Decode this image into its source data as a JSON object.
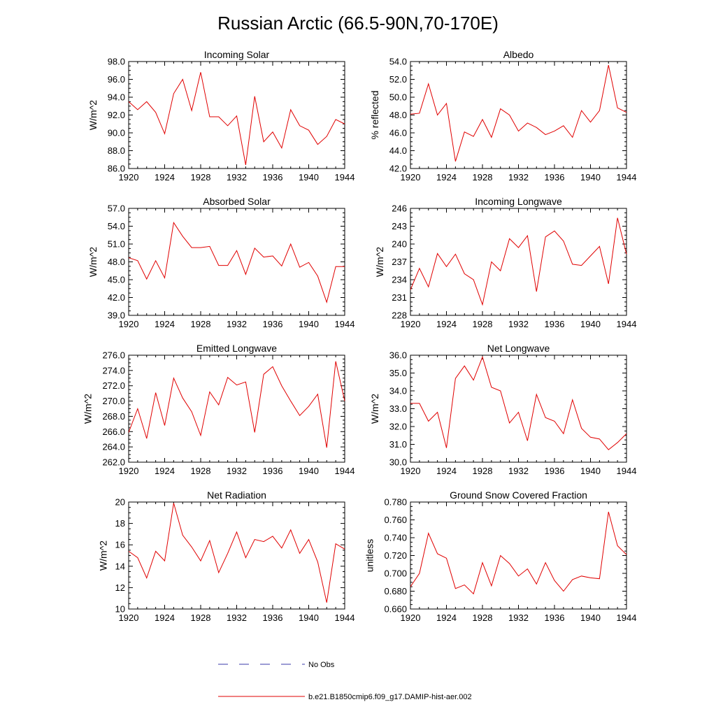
{
  "figure": {
    "title": "Russian Arctic (66.5-90N,70-170E)"
  },
  "legend": {
    "obs_label": "No Obs",
    "obs_color": "#3a3aa8",
    "model_label": "b.e21.B1850cmip6.f09_g17.DAMIP-hist-aer.002",
    "model_color": "#e00000"
  },
  "chart_data": [
    {
      "type": "line",
      "title": "Incoming Solar",
      "ylabel": "W/m^2",
      "x": [
        1920,
        1921,
        1922,
        1923,
        1924,
        1925,
        1926,
        1927,
        1928,
        1929,
        1930,
        1931,
        1932,
        1933,
        1934,
        1935,
        1936,
        1937,
        1938,
        1939,
        1940,
        1941,
        1942,
        1943,
        1944
      ],
      "values": [
        93.5,
        92.6,
        93.5,
        92.3,
        89.9,
        94.4,
        96.0,
        92.5,
        96.8,
        91.8,
        91.8,
        90.8,
        91.9,
        86.4,
        94.1,
        89.0,
        90.1,
        88.3,
        92.6,
        90.8,
        90.3,
        88.7,
        89.6,
        91.5,
        91.0
      ],
      "xlim": [
        1920,
        1944
      ],
      "ylim": [
        86.0,
        98.0
      ],
      "xticks": [
        1920,
        1924,
        1928,
        1932,
        1936,
        1940,
        1944
      ],
      "yticks": [
        "86.0",
        "88.0",
        "90.0",
        "92.0",
        "94.0",
        "96.0",
        "98.0"
      ]
    },
    {
      "type": "line",
      "title": "Albedo",
      "ylabel": "% reflected",
      "x": [
        1920,
        1921,
        1922,
        1923,
        1924,
        1925,
        1926,
        1927,
        1928,
        1929,
        1930,
        1931,
        1932,
        1933,
        1934,
        1935,
        1936,
        1937,
        1938,
        1939,
        1940,
        1941,
        1942,
        1943,
        1944
      ],
      "values": [
        48.1,
        48.2,
        51.5,
        48.0,
        49.3,
        42.8,
        46.1,
        45.6,
        47.5,
        45.5,
        48.7,
        48.0,
        46.2,
        47.1,
        46.6,
        45.8,
        46.2,
        46.8,
        45.5,
        48.5,
        47.2,
        48.5,
        53.6,
        48.8,
        48.3
      ],
      "xlim": [
        1920,
        1944
      ],
      "ylim": [
        42.0,
        54.0
      ],
      "xticks": [
        1920,
        1924,
        1928,
        1932,
        1936,
        1940,
        1944
      ],
      "yticks": [
        "42.0",
        "44.0",
        "46.0",
        "48.0",
        "50.0",
        "52.0",
        "54.0"
      ]
    },
    {
      "type": "line",
      "title": "Absorbed Solar",
      "ylabel": "W/m^2",
      "x": [
        1920,
        1921,
        1922,
        1923,
        1924,
        1925,
        1926,
        1927,
        1928,
        1929,
        1930,
        1931,
        1932,
        1933,
        1934,
        1935,
        1936,
        1937,
        1938,
        1939,
        1940,
        1941,
        1942,
        1943,
        1944
      ],
      "values": [
        48.7,
        48.2,
        45.1,
        48.2,
        45.3,
        54.6,
        52.3,
        50.4,
        50.4,
        50.6,
        47.4,
        47.4,
        49.9,
        45.9,
        50.3,
        48.8,
        49.0,
        47.3,
        51.0,
        47.1,
        47.9,
        45.6,
        41.2,
        47.2,
        47.2
      ],
      "xlim": [
        1920,
        1944
      ],
      "ylim": [
        39.0,
        57.0
      ],
      "xticks": [
        1920,
        1924,
        1928,
        1932,
        1936,
        1940,
        1944
      ],
      "yticks": [
        "39.0",
        "42.0",
        "45.0",
        "48.0",
        "51.0",
        "54.0",
        "57.0"
      ]
    },
    {
      "type": "line",
      "title": "Incoming Longwave",
      "ylabel": "W/m^2",
      "x": [
        1920,
        1921,
        1922,
        1923,
        1924,
        1925,
        1926,
        1927,
        1928,
        1929,
        1930,
        1931,
        1932,
        1933,
        1934,
        1935,
        1936,
        1937,
        1938,
        1939,
        1940,
        1941,
        1942,
        1943,
        1944
      ],
      "values": [
        232.3,
        235.9,
        232.8,
        238.4,
        236.2,
        238.3,
        235.0,
        234.0,
        229.8,
        237.0,
        235.5,
        240.9,
        239.4,
        241.4,
        232.0,
        241.2,
        242.2,
        240.5,
        236.6,
        236.4,
        238.0,
        239.6,
        233.3,
        244.4,
        238.3
      ],
      "xlim": [
        1920,
        1944
      ],
      "ylim": [
        228,
        246
      ],
      "xticks": [
        1920,
        1924,
        1928,
        1932,
        1936,
        1940,
        1944
      ],
      "yticks": [
        "228",
        "231",
        "234",
        "237",
        "240",
        "243",
        "246"
      ]
    },
    {
      "type": "line",
      "title": "Emitted Longwave",
      "ylabel": "W/m^2",
      "x": [
        1920,
        1921,
        1922,
        1923,
        1924,
        1925,
        1926,
        1927,
        1928,
        1929,
        1930,
        1931,
        1932,
        1933,
        1934,
        1935,
        1936,
        1937,
        1938,
        1939,
        1940,
        1941,
        1942,
        1943,
        1944
      ],
      "values": [
        265.9,
        269.0,
        265.1,
        271.1,
        266.8,
        273.0,
        270.4,
        268.6,
        265.5,
        271.2,
        269.5,
        273.1,
        272.1,
        272.5,
        265.9,
        273.5,
        274.5,
        272.0,
        270.0,
        268.1,
        269.3,
        270.9,
        263.9,
        275.2,
        270.0
      ],
      "xlim": [
        1920,
        1944
      ],
      "ylim": [
        262.0,
        276.0
      ],
      "xticks": [
        1920,
        1924,
        1928,
        1932,
        1936,
        1940,
        1944
      ],
      "yticks": [
        "262.0",
        "264.0",
        "266.0",
        "268.0",
        "270.0",
        "272.0",
        "274.0",
        "276.0"
      ]
    },
    {
      "type": "line",
      "title": "Net Longwave",
      "ylabel": "W/m^2",
      "x": [
        1920,
        1921,
        1922,
        1923,
        1924,
        1925,
        1926,
        1927,
        1928,
        1929,
        1930,
        1931,
        1932,
        1933,
        1934,
        1935,
        1936,
        1937,
        1938,
        1939,
        1940,
        1941,
        1942,
        1943,
        1944
      ],
      "values": [
        33.3,
        33.3,
        32.3,
        32.8,
        30.8,
        34.7,
        35.4,
        34.6,
        35.9,
        34.2,
        34.0,
        32.2,
        32.8,
        31.2,
        33.8,
        32.5,
        32.3,
        31.6,
        33.5,
        31.9,
        31.4,
        31.3,
        30.7,
        31.1,
        31.6
      ],
      "xlim": [
        1920,
        1944
      ],
      "ylim": [
        30.0,
        36.0
      ],
      "xticks": [
        1920,
        1924,
        1928,
        1932,
        1936,
        1940,
        1944
      ],
      "yticks": [
        "30.0",
        "31.0",
        "32.0",
        "33.0",
        "34.0",
        "35.0",
        "36.0"
      ]
    },
    {
      "type": "line",
      "title": "Net Radiation",
      "ylabel": "W/m^2",
      "x": [
        1920,
        1921,
        1922,
        1923,
        1924,
        1925,
        1926,
        1927,
        1928,
        1929,
        1930,
        1931,
        1932,
        1933,
        1934,
        1935,
        1936,
        1937,
        1938,
        1939,
        1940,
        1941,
        1942,
        1943,
        1944
      ],
      "values": [
        15.4,
        14.8,
        12.9,
        15.4,
        14.5,
        19.9,
        16.9,
        15.8,
        14.5,
        16.4,
        13.4,
        15.2,
        17.2,
        14.8,
        16.5,
        16.3,
        16.8,
        15.7,
        17.4,
        15.2,
        16.5,
        14.4,
        10.6,
        16.1,
        15.6
      ],
      "xlim": [
        1920,
        1944
      ],
      "ylim": [
        10,
        20
      ],
      "xticks": [
        1920,
        1924,
        1928,
        1932,
        1936,
        1940,
        1944
      ],
      "yticks": [
        "10",
        "12",
        "14",
        "16",
        "18",
        "20"
      ]
    },
    {
      "type": "line",
      "title": "Ground Snow Covered Fraction",
      "ylabel": "unitless",
      "x": [
        1920,
        1921,
        1922,
        1923,
        1924,
        1925,
        1926,
        1927,
        1928,
        1929,
        1930,
        1931,
        1932,
        1933,
        1934,
        1935,
        1936,
        1937,
        1938,
        1939,
        1940,
        1941,
        1942,
        1943,
        1944
      ],
      "values": [
        0.685,
        0.7,
        0.745,
        0.722,
        0.717,
        0.683,
        0.687,
        0.677,
        0.712,
        0.686,
        0.72,
        0.711,
        0.697,
        0.705,
        0.688,
        0.712,
        0.692,
        0.68,
        0.693,
        0.697,
        0.695,
        0.694,
        0.769,
        0.731,
        0.721
      ],
      "xlim": [
        1920,
        1944
      ],
      "ylim": [
        0.66,
        0.78
      ],
      "xticks": [
        1920,
        1924,
        1928,
        1932,
        1936,
        1940,
        1944
      ],
      "yticks": [
        "0.660",
        "0.680",
        "0.700",
        "0.720",
        "0.740",
        "0.760",
        "0.780"
      ]
    }
  ]
}
